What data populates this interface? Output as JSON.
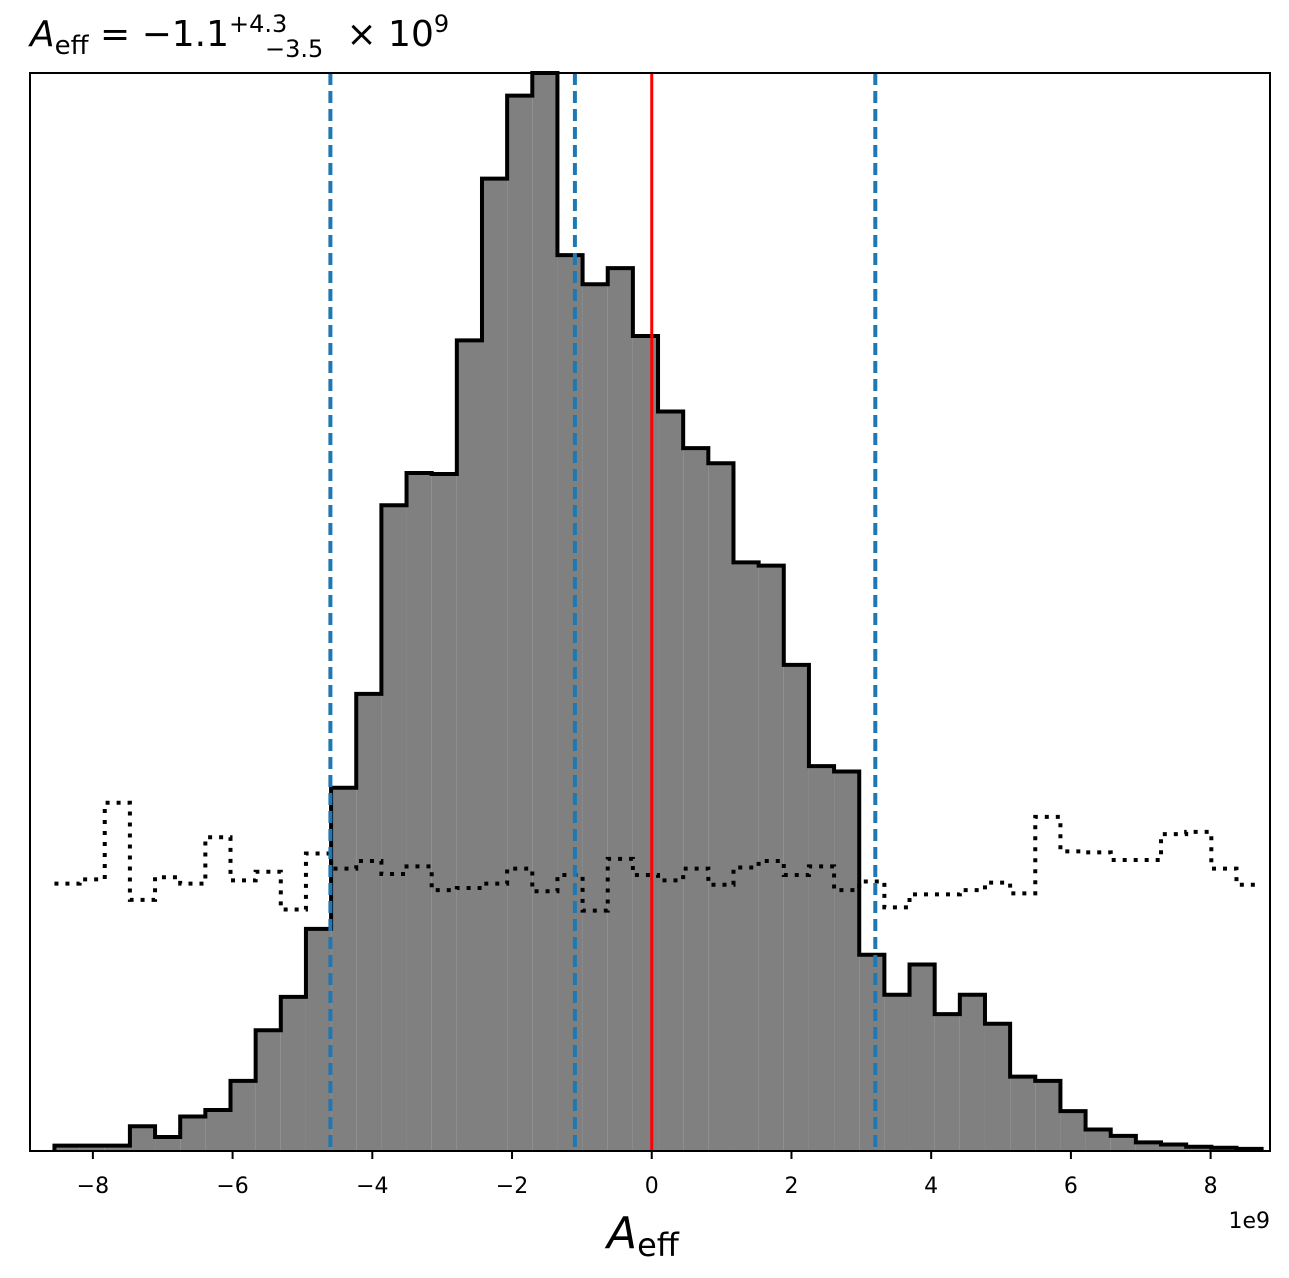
{
  "chart_data": {
    "type": "histogram",
    "title": {
      "base": "A",
      "base_sub": "eff",
      "mid": " = −1.1",
      "sup": "+4.3",
      "sub": "−3.5",
      "tail": " × 10",
      "exp": "9"
    },
    "xlabel": {
      "base": "A",
      "sub": "eff"
    },
    "x_offset_label": "1e9",
    "xlim": [
      -8.9,
      8.85
    ],
    "ylim": [
      0,
      1.0
    ],
    "xticks": [
      -8,
      -6,
      -4,
      -2,
      0,
      2,
      4,
      6,
      8
    ],
    "xtick_labels": [
      "−8",
      "−6",
      "−4",
      "−2",
      "0",
      "2",
      "4",
      "6",
      "8"
    ],
    "grid": false,
    "bin_edges": [
      -8.55,
      -8.19,
      -7.83,
      -7.47,
      -7.11,
      -6.75,
      -6.39,
      -6.03,
      -5.67,
      -5.31,
      -4.95,
      -4.59,
      -4.23,
      -3.87,
      -3.51,
      -3.15,
      -2.79,
      -2.43,
      -2.07,
      -1.71,
      -1.35,
      -0.99,
      -0.63,
      -0.27,
      0.09,
      0.45,
      0.81,
      1.17,
      1.53,
      1.89,
      2.25,
      2.61,
      2.97,
      3.33,
      3.69,
      4.05,
      4.41,
      4.77,
      5.13,
      5.49,
      5.85,
      6.21,
      6.57,
      6.93,
      7.29,
      7.65,
      8.01,
      8.37,
      8.73
    ],
    "series": [
      {
        "style": "filled-step",
        "fill": "#808080",
        "edge": "#000000",
        "values": [
          0.005,
          0.005,
          0.005,
          0.023,
          0.013,
          0.032,
          0.038,
          0.065,
          0.112,
          0.143,
          0.206,
          0.337,
          0.424,
          0.599,
          0.629,
          0.628,
          0.752,
          0.902,
          0.979,
          1.0,
          0.831,
          0.804,
          0.819,
          0.756,
          0.686,
          0.652,
          0.638,
          0.546,
          0.543,
          0.451,
          0.357,
          0.352,
          0.182,
          0.145,
          0.173,
          0.127,
          0.145,
          0.118,
          0.069,
          0.065,
          0.037,
          0.02,
          0.014,
          0.008,
          0.006,
          0.004,
          0.003,
          0.002
        ]
      },
      {
        "style": "dotted-step",
        "color": "#000000",
        "values": [
          0.248,
          0.252,
          0.323,
          0.233,
          0.254,
          0.248,
          0.291,
          0.251,
          0.259,
          0.224,
          0.276,
          0.262,
          0.269,
          0.257,
          0.264,
          0.242,
          0.244,
          0.248,
          0.262,
          0.241,
          0.256,
          0.223,
          0.271,
          0.256,
          0.251,
          0.262,
          0.247,
          0.263,
          0.269,
          0.256,
          0.264,
          0.242,
          0.25,
          0.226,
          0.238,
          0.238,
          0.242,
          0.249,
          0.239,
          0.31,
          0.278,
          0.277,
          0.27,
          0.27,
          0.294,
          0.296,
          0.262,
          0.247
        ]
      }
    ],
    "vlines": [
      {
        "x": -4.6,
        "style": "dashed",
        "color": "#1f77b4"
      },
      {
        "x": -1.1,
        "style": "dashed",
        "color": "#1f77b4"
      },
      {
        "x": 0.0,
        "style": "solid",
        "color": "#ff0000"
      },
      {
        "x": 3.2,
        "style": "dashed",
        "color": "#1f77b4"
      }
    ]
  }
}
